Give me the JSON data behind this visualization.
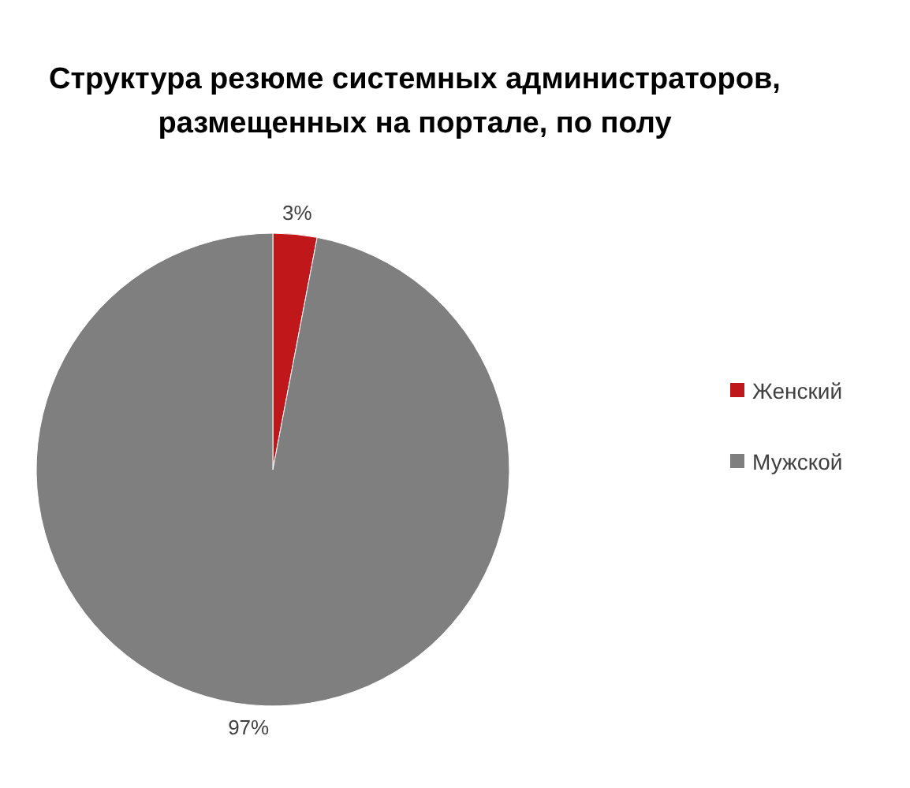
{
  "chart_data": {
    "type": "pie",
    "title": "Структура резюме системных администраторов, размещенных на портале, по полу",
    "categories": [
      "Женский",
      "Мужской"
    ],
    "values": [
      3,
      97
    ],
    "colors": [
      "#c0171b",
      "#7f7f7f"
    ],
    "value_labels": [
      "3%",
      "97%"
    ],
    "legend": "right"
  }
}
